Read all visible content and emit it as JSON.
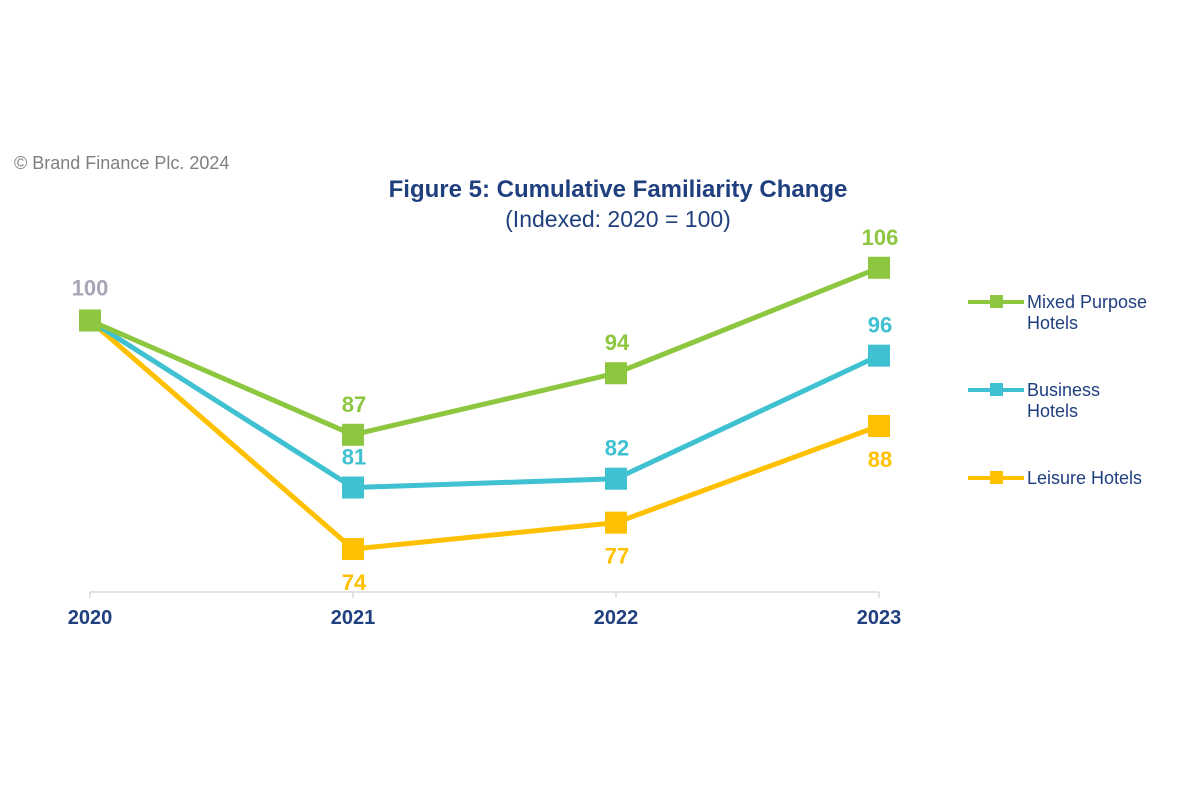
{
  "copyright": "© Brand Finance Plc. 2024",
  "chart_data": {
    "type": "line",
    "title": "Figure 5: Cumulative Familiarity Change",
    "subtitle": "(Indexed: 2020 = 100)",
    "xlabel": "",
    "ylabel": "",
    "x": [
      "2020",
      "2021",
      "2022",
      "2023"
    ],
    "grid": false,
    "legend_position": "right",
    "start_label": "100",
    "start_label_color": "#a9a4b6",
    "series": [
      {
        "name": "Mixed Purpose\nHotels",
        "color": "#8dc63f",
        "values": [
          100,
          87,
          94,
          106
        ],
        "label_position": "above"
      },
      {
        "name": "Business\nHotels",
        "color": "#3fc1d1",
        "values": [
          100,
          81,
          82,
          96
        ],
        "label_position": "above"
      },
      {
        "name": "Leisure Hotels",
        "color": "#ffc000",
        "values": [
          100,
          74,
          77,
          88
        ],
        "label_position": "below"
      }
    ]
  }
}
